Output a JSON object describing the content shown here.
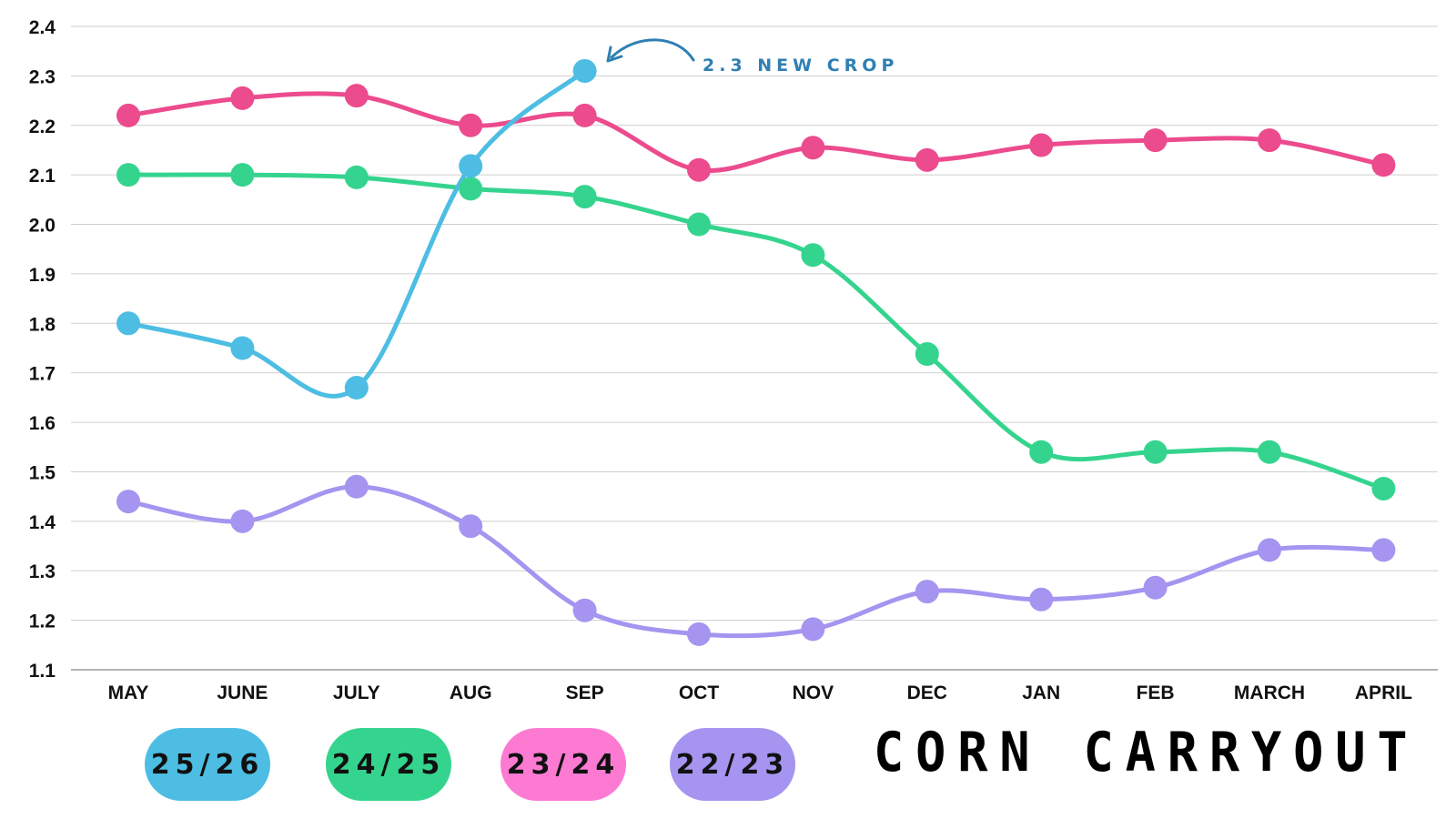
{
  "chart_data": {
    "type": "line",
    "title": "CORN CARRYOUT",
    "categories": [
      "MAY",
      "JUNE",
      "JULY",
      "AUG",
      "SEP",
      "OCT",
      "NOV",
      "DEC",
      "JAN",
      "FEB",
      "MARCH",
      "APRIL"
    ],
    "yticks": [
      "1.1",
      "1.2",
      "1.3",
      "1.4",
      "1.5",
      "1.6",
      "1.7",
      "1.8",
      "1.9",
      "2.0",
      "2.1",
      "2.2",
      "2.3",
      "2.4"
    ],
    "ylim": [
      1.1,
      2.4
    ],
    "grid": true,
    "series": [
      {
        "name": "23/24",
        "color": "#ec4b8e",
        "values": [
          2.22,
          2.255,
          2.26,
          2.2,
          2.22,
          2.11,
          2.155,
          2.13,
          2.16,
          2.17,
          2.17,
          2.12
        ]
      },
      {
        "name": "24/25",
        "color": "#35d48e",
        "values": [
          2.1,
          2.1,
          2.095,
          2.072,
          2.056,
          2.0,
          1.938,
          1.738,
          1.54,
          1.54,
          1.54,
          1.466
        ]
      },
      {
        "name": "22/23",
        "color": "#a594f0",
        "values": [
          1.44,
          1.4,
          1.47,
          1.39,
          1.22,
          1.172,
          1.182,
          1.258,
          1.242,
          1.266,
          1.342,
          1.342
        ]
      },
      {
        "name": "25/26",
        "color": "#4dbde3",
        "values": [
          1.8,
          1.75,
          1.67,
          2.118,
          2.31,
          null,
          null,
          null,
          null,
          null,
          null,
          null
        ]
      }
    ],
    "annotation": {
      "text": "2.3 NEW CROP",
      "color": "#2f7fb3",
      "series": "25/26",
      "category": "SEP"
    },
    "legend": {
      "placement": "bottom-left",
      "items": [
        {
          "label": "25/26",
          "color": "#4dbde3"
        },
        {
          "label": "24/25",
          "color": "#35d48e"
        },
        {
          "label": "23/24",
          "color": "#fd7ad3"
        },
        {
          "label": "22/23",
          "color": "#a594f0"
        }
      ]
    }
  }
}
